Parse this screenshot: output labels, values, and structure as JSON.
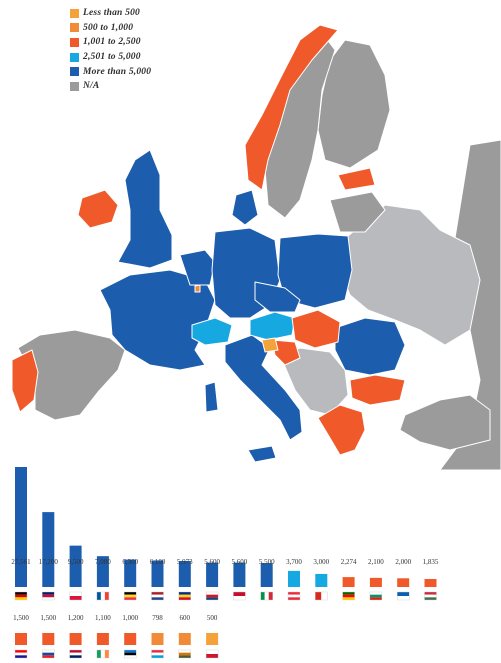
{
  "legend": [
    {
      "label": "Less than 500",
      "color": "#F6A23A"
    },
    {
      "label": "500 to 1,000",
      "color": "#F28B38"
    },
    {
      "label": "1,001 to 2,500",
      "color": "#F05A2A"
    },
    {
      "label": "2,501 to 5,000",
      "color": "#16A8E0"
    },
    {
      "label": "More than 5,000",
      "color": "#1C5DAD"
    },
    {
      "label": "N/A",
      "color": "#9B9B9B"
    }
  ],
  "colors": {
    "na": "#9B9B9B",
    "na_light": "#B8BABD",
    "more_than_5000": "#1C5DAD",
    "from_2501_to_5000": "#16A8E0",
    "from_1001_to_2500": "#F05A2A",
    "from_500_to_1000": "#F28B38",
    "less_than_500": "#F6A23A"
  },
  "chart_data": {
    "type": "bar",
    "categories": [
      "Germany",
      "United Kingdom",
      "Poland",
      "France",
      "Belgium",
      "Netherlands",
      "Romania",
      "Czech Republic",
      "Denmark",
      "Italy",
      "Austria",
      "Switzerland",
      "Portugal",
      "Bulgaria",
      "Greece",
      "Hungary",
      "Croatia",
      "Slovakia",
      "Norway",
      "Ireland",
      "Estonia",
      "Luxembourg",
      "Cyprus",
      "Malta"
    ],
    "values": [
      27561,
      17200,
      9500,
      7080,
      6300,
      6100,
      5973,
      5600,
      5600,
      5500,
      3700,
      3000,
      2274,
      2100,
      2000,
      1835,
      1500,
      1500,
      1200,
      1100,
      1000,
      798,
      600,
      500
    ],
    "value_labels": [
      "27,561",
      "17,200",
      "9,500",
      "7,080",
      "6,300",
      "6,100",
      "5,973",
      "5,600",
      "5,600",
      "5,500",
      "3,700",
      "3,000",
      "2,274",
      "2,100",
      "2,000",
      "1,835",
      "1,500",
      "1,500",
      "1,200",
      "1,100",
      "1,000",
      "798",
      "600",
      "500"
    ],
    "bin_colors": [
      "#1C5DAD",
      "#1C5DAD",
      "#1C5DAD",
      "#1C5DAD",
      "#1C5DAD",
      "#1C5DAD",
      "#1C5DAD",
      "#1C5DAD",
      "#1C5DAD",
      "#1C5DAD",
      "#16A8E0",
      "#16A8E0",
      "#F05A2A",
      "#F05A2A",
      "#F05A2A",
      "#F05A2A",
      "#F05A2A",
      "#F05A2A",
      "#F05A2A",
      "#F05A2A",
      "#F05A2A",
      "#F28B38",
      "#F28B38",
      "#F6A23A"
    ],
    "flags": [
      [
        "#000000",
        "#DD0000",
        "#FFCE00"
      ],
      [
        "#012169",
        "#C8102E",
        "#FFFFFF"
      ],
      [
        "#FFFFFF",
        "#DC143C"
      ],
      [
        "#0055A4",
        "#FFFFFF",
        "#EF4135"
      ],
      [
        "#000000",
        "#FDDA24",
        "#EF3340"
      ],
      [
        "#AE1C28",
        "#FFFFFF",
        "#21468B"
      ],
      [
        "#002B7F",
        "#FCD116",
        "#CE1126"
      ],
      [
        "#FFFFFF",
        "#D7141A",
        "#11457E"
      ],
      [
        "#C60C30",
        "#FFFFFF"
      ],
      [
        "#009246",
        "#FFFFFF",
        "#CE2B37"
      ],
      [
        "#ED2939",
        "#FFFFFF",
        "#ED2939"
      ],
      [
        "#D52B1E",
        "#FFFFFF"
      ],
      [
        "#006600",
        "#FF0000",
        "#FFCC00"
      ],
      [
        "#FFFFFF",
        "#00966E",
        "#D62612"
      ],
      [
        "#0D5EAF",
        "#FFFFFF"
      ],
      [
        "#CD2A3E",
        "#FFFFFF",
        "#436F4D"
      ],
      [
        "#FF0000",
        "#FFFFFF",
        "#171796"
      ],
      [
        "#FFFFFF",
        "#0B4EA2",
        "#EE1C25"
      ],
      [
        "#BA0C2F",
        "#FFFFFF",
        "#00205B"
      ],
      [
        "#169B62",
        "#FFFFFF",
        "#FF883E"
      ],
      [
        "#0072CE",
        "#000000",
        "#FFFFFF"
      ],
      [
        "#ED2939",
        "#FFFFFF",
        "#00A1DE"
      ],
      [
        "#FFFFFF",
        "#D57800",
        "#4E5B31"
      ],
      [
        "#FFFFFF",
        "#CF142B"
      ]
    ]
  }
}
